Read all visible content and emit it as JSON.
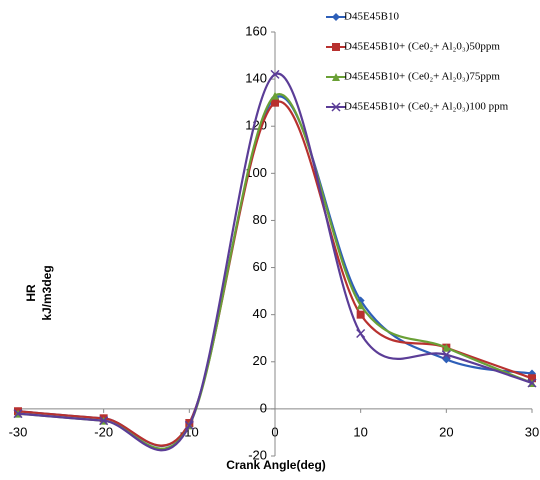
{
  "chart_data": {
    "type": "line",
    "x": [
      -30,
      -20,
      -10,
      0,
      10,
      20,
      30
    ],
    "xlim": [
      -30,
      30
    ],
    "xticks": [
      -30,
      -20,
      -10,
      0,
      10,
      20,
      30
    ],
    "ylim": [
      -20,
      160
    ],
    "yticks": [
      -20,
      0,
      20,
      40,
      60,
      80,
      100,
      120,
      140,
      160
    ],
    "xlabel": "Crank Angle(deg)",
    "ylabel": [
      "HR",
      "kJ/m3deg"
    ],
    "legend": "top-right",
    "series": [
      {
        "name": "D45E45B10",
        "color": "#2e5fb8",
        "marker": "diamond",
        "values": [
          -1,
          -4,
          -6,
          132,
          46,
          21,
          15
        ]
      },
      {
        "name": "D45E45B10+ (Ce0₂+ Al₂0₃)50ppm",
        "color": "#b8312f",
        "marker": "square",
        "values": [
          -1,
          -4,
          -6,
          130,
          40,
          26,
          13
        ]
      },
      {
        "name": "D45E45B10+ (Ce0₂+ Al₂0₃)75ppm",
        "color": "#6aa036",
        "marker": "triangle",
        "values": [
          -2,
          -5,
          -7,
          133,
          44,
          26,
          11
        ]
      },
      {
        "name": "D45E45B10+ (Ce0₂+ Al₂0₃)100 ppm",
        "color": "#5b3d97",
        "marker": "x",
        "values": [
          -2,
          -5,
          -7,
          142,
          32,
          23,
          11
        ]
      }
    ]
  }
}
